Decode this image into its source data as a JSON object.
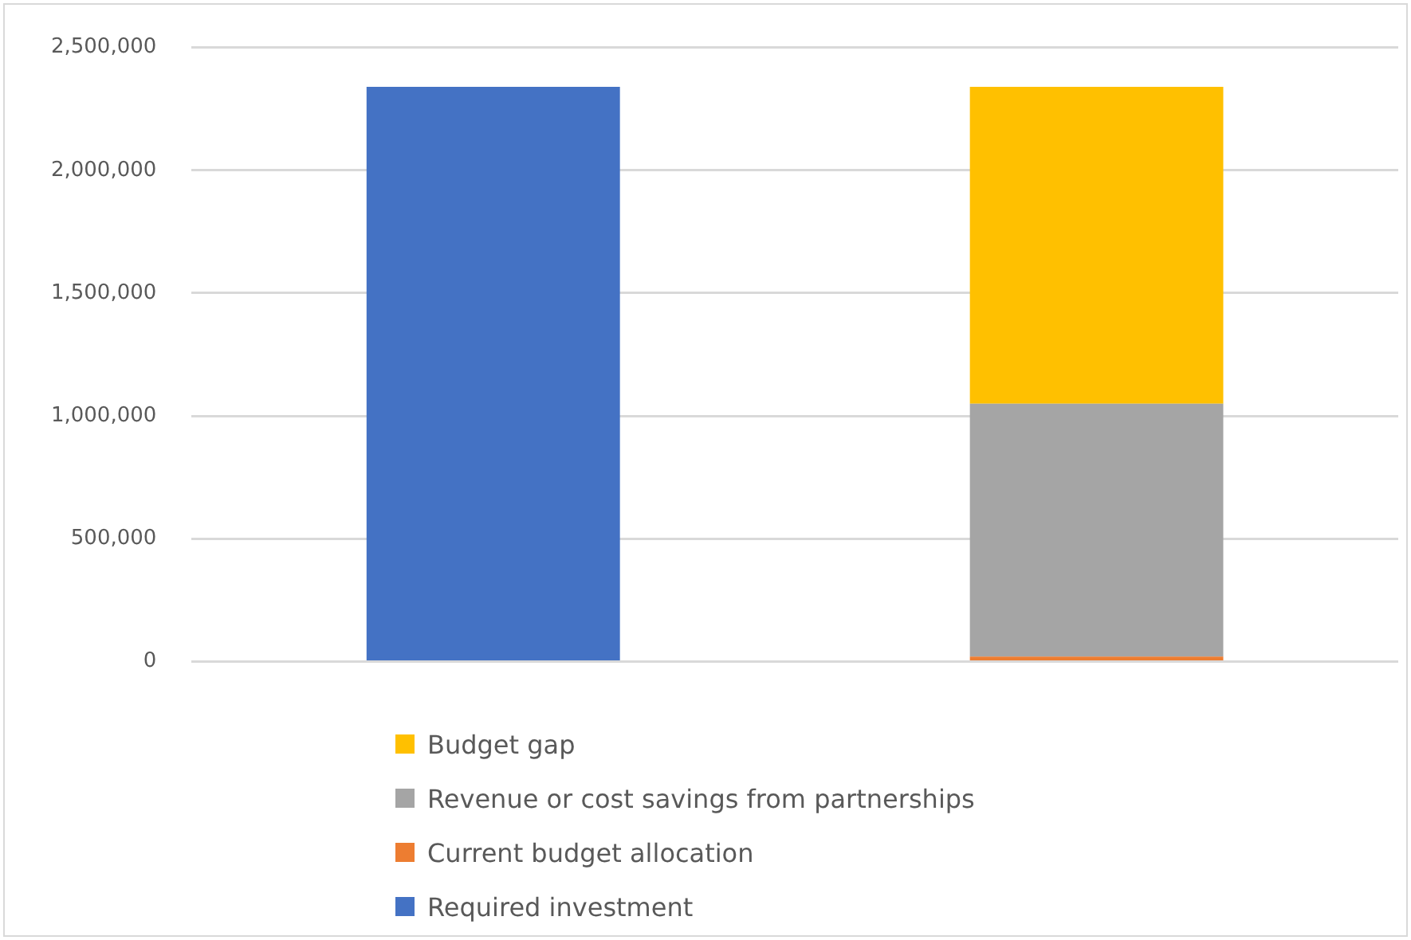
{
  "chart_data": {
    "type": "bar",
    "stacked": true,
    "categories": [
      null,
      null
    ],
    "series": [
      {
        "name": "Required investment",
        "color": "#4472c4",
        "values": [
          2340000,
          null
        ]
      },
      {
        "name": "Current budget allocation",
        "color": "#ed7d31",
        "values": [
          null,
          20000
        ]
      },
      {
        "name": "Revenue or cost savings from partnerships",
        "color": "#a5a5a5",
        "values": [
          null,
          1030000
        ]
      },
      {
        "name": "Budget gap",
        "color": "#ffc000",
        "values": [
          null,
          1290000
        ]
      }
    ],
    "ylim": [
      0,
      2500000
    ],
    "yticks": [
      0,
      {
        "value": 500000,
        "label": "500,000"
      },
      {
        "value": 1000000,
        "label": "1,000,000"
      },
      {
        "value": 1500000,
        "label": "1,500,000"
      },
      {
        "value": 2000000,
        "label": "2,000,000"
      },
      {
        "value": 2500000,
        "label": "2,500,000"
      }
    ],
    "grid": "y",
    "legend": "bottom"
  }
}
